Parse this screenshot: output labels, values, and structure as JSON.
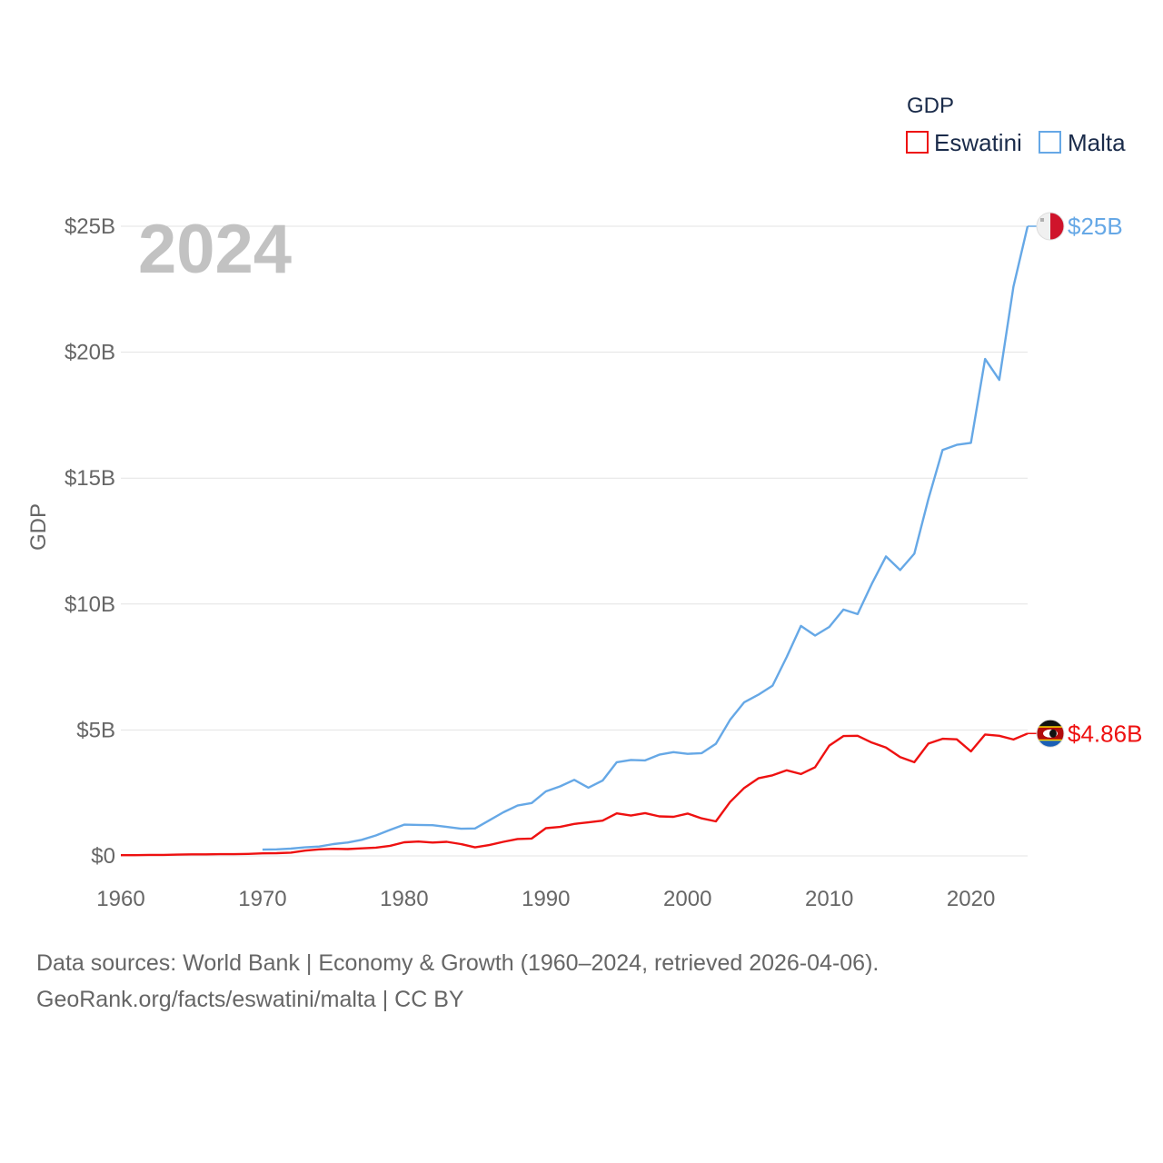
{
  "chart_data": {
    "type": "line",
    "title": "",
    "year_label": "2024",
    "ylabel": "GDP",
    "xlabel": "",
    "xlim": [
      1960,
      2024
    ],
    "ylim": [
      0,
      25
    ],
    "y_unit": "billion USD",
    "x_ticks": [
      1960,
      1970,
      1980,
      1990,
      2000,
      2010,
      2020
    ],
    "y_ticks": [
      {
        "value": 0,
        "label": "$0"
      },
      {
        "value": 5,
        "label": "$5B"
      },
      {
        "value": 10,
        "label": "$10B"
      },
      {
        "value": 15,
        "label": "$15B"
      },
      {
        "value": 20,
        "label": "$20B"
      },
      {
        "value": 25,
        "label": "$25B"
      }
    ],
    "legend": {
      "title": "GDP",
      "position": "top-right"
    },
    "series": [
      {
        "name": "Eswatini",
        "color": "#ee1111",
        "end_label": "$4.86B",
        "flag_icon": "eswatini-flag-icon",
        "x": [
          1960,
          1961,
          1962,
          1963,
          1964,
          1965,
          1966,
          1967,
          1968,
          1969,
          1970,
          1971,
          1972,
          1973,
          1974,
          1975,
          1976,
          1977,
          1978,
          1979,
          1980,
          1981,
          1982,
          1983,
          1984,
          1985,
          1986,
          1987,
          1988,
          1989,
          1990,
          1991,
          1992,
          1993,
          1994,
          1995,
          1996,
          1997,
          1998,
          1999,
          2000,
          2001,
          2002,
          2003,
          2004,
          2005,
          2006,
          2007,
          2008,
          2009,
          2010,
          2011,
          2012,
          2013,
          2014,
          2015,
          2016,
          2017,
          2018,
          2019,
          2020,
          2021,
          2022,
          2023,
          2024
        ],
        "values": [
          0.03,
          0.03,
          0.04,
          0.04,
          0.05,
          0.06,
          0.06,
          0.07,
          0.07,
          0.08,
          0.1,
          0.11,
          0.13,
          0.21,
          0.26,
          0.28,
          0.27,
          0.3,
          0.33,
          0.4,
          0.54,
          0.57,
          0.53,
          0.56,
          0.47,
          0.34,
          0.43,
          0.56,
          0.67,
          0.69,
          1.1,
          1.15,
          1.27,
          1.33,
          1.4,
          1.69,
          1.6,
          1.7,
          1.57,
          1.55,
          1.68,
          1.49,
          1.37,
          2.14,
          2.7,
          3.08,
          3.2,
          3.4,
          3.25,
          3.52,
          4.38,
          4.76,
          4.77,
          4.5,
          4.3,
          3.92,
          3.72,
          4.46,
          4.65,
          4.63,
          4.15,
          4.82,
          4.77,
          4.62,
          4.86
        ]
      },
      {
        "name": "Malta",
        "color": "#66a8e6",
        "end_label": "$25B",
        "flag_icon": "malta-flag-icon",
        "x": [
          1970,
          1971,
          1972,
          1973,
          1974,
          1975,
          1976,
          1977,
          1978,
          1979,
          1980,
          1981,
          1982,
          1983,
          1984,
          1985,
          1986,
          1987,
          1988,
          1989,
          1990,
          1991,
          1992,
          1993,
          1994,
          1995,
          1996,
          1997,
          1998,
          1999,
          2000,
          2001,
          2002,
          2003,
          2004,
          2005,
          2006,
          2007,
          2008,
          2009,
          2010,
          2011,
          2012,
          2013,
          2014,
          2015,
          2016,
          2017,
          2018,
          2019,
          2020,
          2021,
          2022,
          2023,
          2024
        ],
        "values": [
          0.25,
          0.26,
          0.29,
          0.34,
          0.37,
          0.47,
          0.53,
          0.64,
          0.81,
          1.03,
          1.24,
          1.23,
          1.22,
          1.15,
          1.08,
          1.09,
          1.41,
          1.73,
          2.0,
          2.1,
          2.56,
          2.76,
          3.02,
          2.71,
          2.99,
          3.72,
          3.81,
          3.79,
          4.02,
          4.12,
          4.05,
          4.08,
          4.45,
          5.4,
          6.1,
          6.4,
          6.76,
          7.9,
          9.13,
          8.75,
          9.09,
          9.78,
          9.6,
          10.8,
          11.89,
          11.35,
          12.0,
          14.17,
          16.12,
          16.32,
          16.4,
          19.73,
          18.9,
          22.6,
          25.0
        ]
      }
    ]
  },
  "footer": {
    "source_line1": "Data sources: World Bank | Economy & Growth (1960–2024, retrieved 2026-04-06).",
    "source_line2": "GeoRank.org/facts/eswatini/malta | CC BY"
  }
}
